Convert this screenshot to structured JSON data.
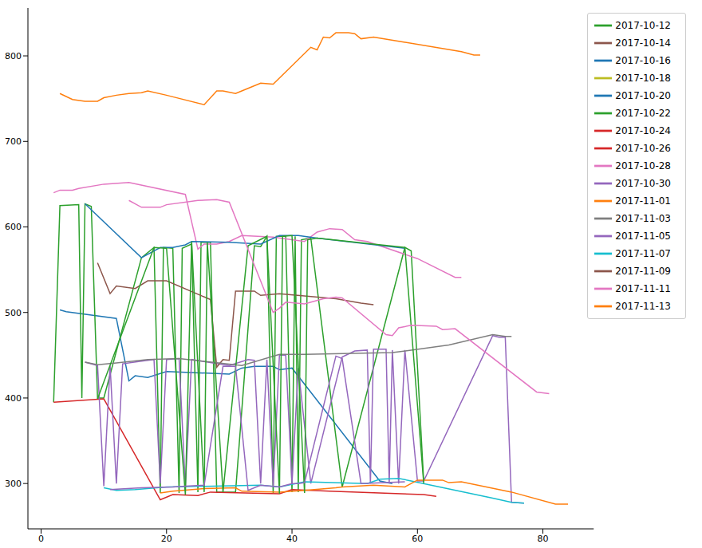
{
  "chart_data": {
    "type": "line",
    "xlim": [
      -2.1,
      88.1
    ],
    "ylim": [
      247,
      856
    ],
    "xticks": [
      0,
      20,
      40,
      60,
      80
    ],
    "yticks": [
      300,
      400,
      500,
      600,
      700,
      800
    ],
    "grid": false,
    "legend": "upper right",
    "series": [
      {
        "name": "2017-10-20",
        "color": "#1f77b4",
        "x": [
          3,
          4,
          12,
          14,
          15,
          17,
          20,
          30,
          32,
          34,
          37,
          38,
          40,
          54,
          56
        ],
        "values": [
          503,
          501,
          493,
          420,
          426,
          424,
          431,
          428,
          435,
          437,
          437,
          433,
          435,
          303,
          300
        ]
      },
      {
        "name": "2017-11-13",
        "color": "#ff7f0e",
        "x": [
          3,
          5,
          7,
          9,
          10,
          12,
          14,
          16,
          17,
          20,
          26,
          28,
          29,
          31,
          33,
          35,
          37,
          43,
          44,
          45,
          46,
          47,
          49,
          50,
          51,
          53,
          58,
          67,
          69,
          70
        ],
        "values": [
          756,
          749,
          747,
          747,
          751,
          754,
          756,
          757,
          759,
          754,
          743,
          759,
          759,
          756,
          762,
          768,
          767,
          810,
          807,
          822,
          821,
          827,
          827,
          826,
          820,
          822,
          816,
          805,
          801,
          801
        ]
      },
      {
        "name": "2017-10-22",
        "color": "#2ca02c",
        "x": [
          2,
          3,
          6,
          6.5,
          7,
          8,
          9,
          10,
          16,
          18,
          19,
          19.5,
          21,
          22,
          22.5,
          24,
          25,
          25.5,
          27,
          28,
          31,
          34,
          35,
          36,
          37,
          37.5,
          39,
          40,
          40.5,
          41,
          41.5,
          43,
          48,
          58,
          59,
          61
        ],
        "values": [
          395,
          625,
          626,
          400,
          627,
          624,
          400,
          400,
          564,
          576,
          289,
          576,
          575,
          289,
          575,
          580,
          290,
          582,
          582,
          290,
          290,
          578,
          577,
          589,
          289,
          589,
          589,
          290,
          589,
          290,
          585,
          587,
          296,
          576,
          572,
          302
        ]
      },
      {
        "name": "2017-10-26",
        "color": "#d62728",
        "x": [
          2,
          10,
          19,
          21,
          25,
          27,
          38,
          40,
          46,
          61,
          63
        ],
        "values": [
          395,
          399,
          281,
          287,
          286,
          290,
          288,
          293,
          291,
          287,
          285
        ]
      },
      {
        "name": "2017-10-30",
        "color": "#9467bd",
        "x": [
          7,
          9,
          10,
          11,
          12,
          13,
          16,
          18,
          19,
          20,
          22,
          23,
          24,
          30,
          33,
          34,
          35,
          36,
          37,
          38,
          39,
          40,
          41,
          43,
          48,
          50,
          52,
          52.5,
          53,
          55,
          55.5,
          56,
          57,
          58,
          60,
          61,
          72,
          73,
          74,
          75,
          77
        ],
        "values": [
          442,
          438,
          297,
          438,
          300,
          440,
          443,
          445,
          300,
          445,
          446,
          297,
          445,
          438,
          445,
          444,
          300,
          445,
          297,
          450,
          450,
          300,
          435,
          300,
          448,
          455,
          456,
          300,
          457,
          457,
          300,
          456,
          300,
          456,
          303,
          303,
          473,
          471,
          471,
          278,
          277
        ]
      },
      {
        "name": "2017-11-09",
        "color": "#8c564b",
        "x": [
          9,
          11,
          12,
          15,
          17,
          20,
          27,
          28,
          29,
          30,
          31,
          34,
          35,
          38,
          47,
          51,
          53
        ],
        "values": [
          558,
          522,
          531,
          528,
          537,
          537,
          515,
          436,
          445,
          444,
          525,
          525,
          520,
          522,
          516,
          511,
          509
        ]
      },
      {
        "name": "2017-10-28",
        "color": "#e377c2",
        "x": [
          2,
          3,
          5,
          6,
          10,
          14,
          23,
          25,
          26,
          28,
          30,
          32,
          37,
          42,
          44,
          46,
          48,
          50,
          52,
          60,
          66,
          67
        ],
        "values": [
          640,
          643,
          643,
          645,
          650,
          652,
          638,
          574,
          580,
          580,
          583,
          590,
          588,
          583,
          594,
          598,
          597,
          585,
          583,
          563,
          541,
          541
        ]
      },
      {
        "name": "2017-11-03",
        "color": "#7f7f7f",
        "x": [
          7,
          9,
          12,
          17,
          22,
          32,
          38,
          42,
          56,
          65,
          72,
          74,
          75
        ],
        "values": [
          442,
          439,
          441,
          445,
          446,
          438,
          451,
          451,
          453,
          462,
          474,
          472,
          472
        ]
      },
      {
        "name": "2017-10-18",
        "color": "#bcbd22",
        "x": [],
        "values": []
      },
      {
        "name": "2017-11-07",
        "color": "#17becf",
        "x": [
          10,
          12,
          15,
          20,
          35,
          38,
          42,
          52,
          54,
          57,
          59,
          72,
          75,
          77
        ],
        "values": [
          295,
          292,
          293,
          296,
          298,
          296,
          302,
          300,
          305,
          306,
          303,
          283,
          278,
          277
        ]
      },
      {
        "name": "2017-10-16",
        "color": "#1f77b4",
        "x": [
          7,
          16,
          19,
          21,
          23,
          24,
          30,
          35,
          38,
          41,
          44,
          58
        ],
        "values": [
          627,
          564,
          576,
          576,
          579,
          583,
          582,
          580,
          590,
          590,
          587,
          575
        ]
      },
      {
        "name": "2017-11-01",
        "color": "#ff7f0e",
        "x": [
          19,
          21,
          26,
          31,
          32,
          38,
          42,
          47,
          48,
          53,
          58,
          60,
          64,
          65,
          67,
          75,
          82,
          84
        ],
        "values": [
          289,
          291,
          294,
          295,
          291,
          290,
          292,
          295,
          296,
          298,
          296,
          304,
          304,
          301,
          302,
          290,
          276,
          276
        ]
      },
      {
        "name": "2017-10-12",
        "color": "#2ca02c",
        "x": [
          9,
          18,
          20,
          23,
          24,
          26,
          26.5,
          29,
          33,
          36,
          38,
          38.5,
          40,
          42,
          42.5,
          44,
          58,
          61
        ],
        "values": [
          399,
          576,
          575,
          287,
          583,
          290,
          582,
          290,
          578,
          589,
          288,
          589,
          590,
          289,
          585,
          587,
          576,
          300
        ]
      },
      {
        "name": "2017-10-24",
        "color": "#d62728",
        "x": [],
        "values": []
      },
      {
        "name": "2017-11-05",
        "color": "#9467bd",
        "x": [
          11,
          16,
          21,
          23,
          26,
          29,
          31,
          33,
          35,
          38,
          40,
          41,
          42,
          47,
          48,
          51,
          58
        ],
        "values": [
          293,
          295,
          296,
          297,
          298,
          437,
          437,
          292,
          298,
          296,
          300,
          300,
          301,
          449,
          446,
          300,
          302
        ]
      },
      {
        "name": "2017-10-14",
        "color": "#8c564b",
        "x": [],
        "values": []
      },
      {
        "name": "2017-11-11",
        "color": "#e377c2",
        "x": [
          14,
          16,
          19,
          20,
          25,
          28,
          30,
          37,
          38,
          39,
          42,
          45,
          47,
          48,
          55,
          56,
          57,
          59,
          63,
          64,
          66,
          79,
          81
        ],
        "values": [
          631,
          623,
          623,
          626,
          631,
          632,
          629,
          500,
          505,
          512,
          510,
          516,
          518,
          517,
          474,
          473,
          482,
          485,
          484,
          480,
          481,
          407,
          405
        ]
      }
    ]
  }
}
